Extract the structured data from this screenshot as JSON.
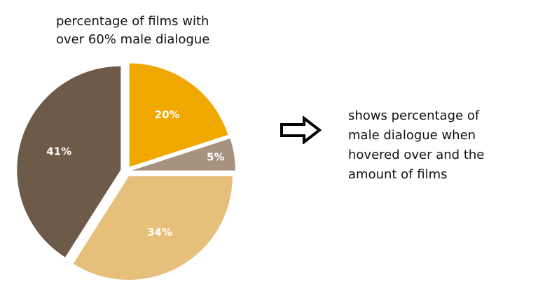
{
  "title_lines": [
    "percentage of films with",
    "over 60% male dialogue"
  ],
  "annotation": {
    "icon": "right-arrow-icon",
    "lines": [
      "shows percentage of",
      "male dialogue when",
      "hovered over and the",
      "amount of films"
    ]
  },
  "chart_data": {
    "type": "pie",
    "title": "percentage of films with over 60% male dialogue",
    "start_angle_deg": 0,
    "direction": "clockwise",
    "slices": [
      {
        "label": "20%",
        "value": 20,
        "color": "#f0a800"
      },
      {
        "label": "5%",
        "value": 5,
        "color": "#a6927f"
      },
      {
        "label": "34%",
        "value": 34,
        "color": "#e6c07a"
      },
      {
        "label": "41%",
        "value": 41,
        "color": "#6d5a48"
      }
    ]
  }
}
